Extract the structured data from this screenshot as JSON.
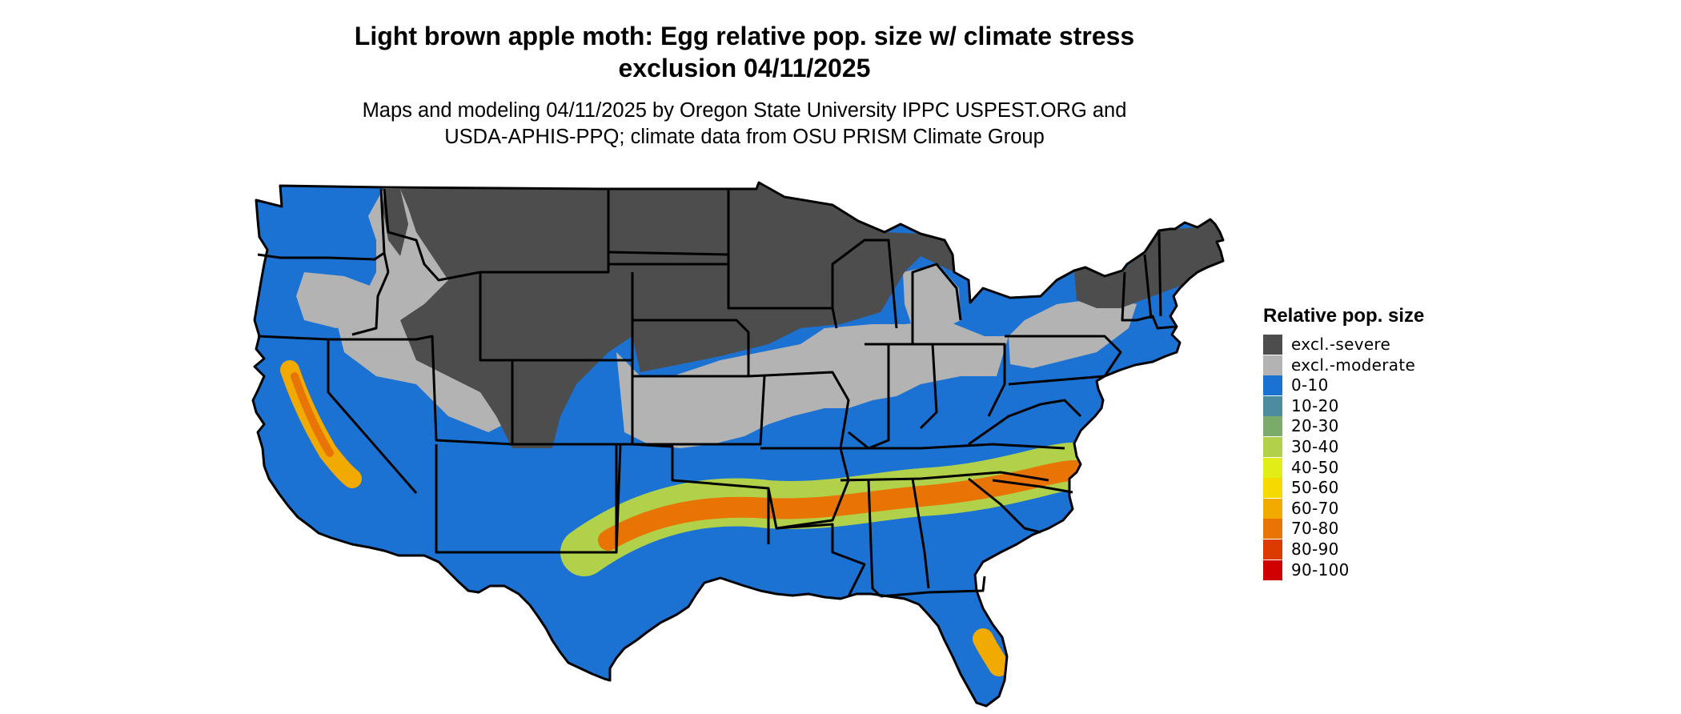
{
  "map": {
    "title_line1": "Light brown apple moth: Egg relative pop. size w/ climate stress",
    "title_line2": "exclusion 04/11/2025",
    "subtitle_line1": "Maps and modeling 04/11/2025 by Oregon State University IPPC USPEST.ORG and",
    "subtitle_line2": "USDA-APHIS-PPQ; climate data from OSU PRISM Climate Group",
    "region": "Contiguous United States",
    "colors": {
      "excl_severe": "#4d4d4d",
      "excl_moderate": "#b3b3b3",
      "c0_10": "#1c72d2",
      "c10_20": "#4d8ba0",
      "c20_30": "#7aab6b",
      "c30_40": "#b2d14a",
      "c40_50": "#e2ec16",
      "c50_60": "#f5da00",
      "c60_70": "#f0aa00",
      "c70_80": "#e87405",
      "c80_90": "#dc3a00",
      "c90_100": "#d10000",
      "state_border": "#000000"
    }
  },
  "legend": {
    "title": "Relative pop. size",
    "items": [
      {
        "label": "excl.-severe",
        "color": "#4d4d4d"
      },
      {
        "label": "excl.-moderate",
        "color": "#b3b3b3"
      },
      {
        "label": "0-10",
        "color": "#1c72d2"
      },
      {
        "label": "10-20",
        "color": "#4d8ba0"
      },
      {
        "label": "20-30",
        "color": "#7aab6b"
      },
      {
        "label": "30-40",
        "color": "#b2d14a"
      },
      {
        "label": "40-50",
        "color": "#e2ec16"
      },
      {
        "label": "50-60",
        "color": "#f5da00"
      },
      {
        "label": "60-70",
        "color": "#f0aa00"
      },
      {
        "label": "70-80",
        "color": "#e87405"
      },
      {
        "label": "80-90",
        "color": "#dc3a00"
      },
      {
        "label": "90-100",
        "color": "#d10000"
      }
    ]
  }
}
